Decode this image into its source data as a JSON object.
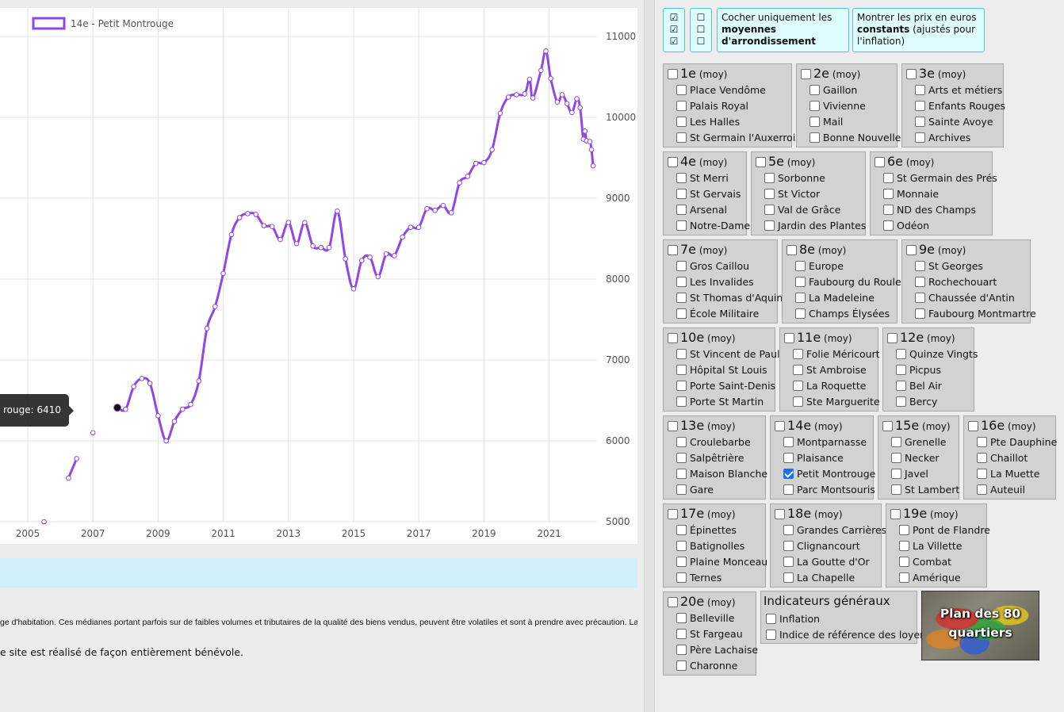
{
  "chart_data": {
    "type": "line",
    "title": "",
    "xlabel": "",
    "ylabel": "",
    "ylim": [
      5000,
      11000
    ],
    "xlim": [
      2004.7,
      2022.3
    ],
    "x_ticks": [
      "2005",
      "2007",
      "2009",
      "2011",
      "2013",
      "2015",
      "2017",
      "2019",
      "2021"
    ],
    "y_ticks": [
      "5000",
      "6000",
      "7000",
      "8000",
      "9000",
      "10000",
      "11000"
    ],
    "grid": true,
    "legend": "top-left",
    "series": [
      {
        "name": "14e - Petit Montrouge",
        "color": "#9146e8",
        "segments": [
          [
            [
              2005.5,
              5000
            ]
          ],
          [
            [
              2006.25,
              5540
            ],
            [
              2006.5,
              5780
            ]
          ],
          [
            [
              2007.0,
              6100
            ]
          ],
          [
            [
              2007.75,
              6410
            ],
            [
              2008.0,
              6390
            ],
            [
              2008.25,
              6670
            ],
            [
              2008.5,
              6770
            ],
            [
              2008.75,
              6710
            ],
            [
              2009.0,
              6310
            ],
            [
              2009.25,
              6000
            ],
            [
              2009.5,
              6240
            ],
            [
              2009.75,
              6390
            ],
            [
              2010.0,
              6450
            ],
            [
              2010.25,
              6740
            ],
            [
              2010.5,
              7390
            ],
            [
              2010.75,
              7660
            ],
            [
              2011.0,
              8070
            ],
            [
              2011.25,
              8550
            ],
            [
              2011.5,
              8760
            ],
            [
              2011.75,
              8810
            ],
            [
              2012.0,
              8800
            ],
            [
              2012.25,
              8660
            ],
            [
              2012.5,
              8650
            ],
            [
              2012.75,
              8490
            ],
            [
              2013.0,
              8700
            ],
            [
              2013.25,
              8440
            ],
            [
              2013.5,
              8700
            ],
            [
              2013.75,
              8410
            ],
            [
              2014.0,
              8390
            ],
            [
              2014.25,
              8390
            ],
            [
              2014.5,
              8840
            ],
            [
              2014.75,
              8250
            ],
            [
              2015.0,
              7880
            ],
            [
              2015.25,
              8230
            ],
            [
              2015.5,
              8270
            ],
            [
              2015.75,
              8030
            ],
            [
              2016.0,
              8310
            ],
            [
              2016.25,
              8290
            ],
            [
              2016.5,
              8520
            ],
            [
              2016.75,
              8640
            ],
            [
              2017.0,
              8640
            ],
            [
              2017.25,
              8870
            ],
            [
              2017.5,
              8850
            ],
            [
              2017.75,
              8910
            ],
            [
              2018.0,
              8820
            ],
            [
              2018.25,
              9190
            ],
            [
              2018.5,
              9270
            ],
            [
              2018.75,
              9430
            ],
            [
              2019.0,
              9440
            ],
            [
              2019.25,
              9600
            ],
            [
              2019.5,
              10050
            ],
            [
              2019.75,
              10250
            ],
            [
              2020.0,
              10280
            ],
            [
              2020.25,
              10290
            ],
            [
              2020.4,
              10470
            ],
            [
              2020.5,
              10240
            ],
            [
              2020.75,
              10580
            ],
            [
              2020.9,
              10820
            ],
            [
              2021.05,
              10480
            ],
            [
              2021.25,
              10190
            ],
            [
              2021.4,
              10280
            ],
            [
              2021.55,
              10170
            ],
            [
              2021.7,
              10060
            ],
            [
              2021.85,
              10230
            ],
            [
              2021.95,
              10120
            ],
            [
              2022.05,
              9730
            ],
            [
              2022.1,
              9830
            ],
            [
              2022.15,
              9710
            ],
            [
              2022.25,
              9700
            ],
            [
              2022.3,
              9600
            ],
            [
              2022.35,
              9400
            ]
          ]
        ]
      }
    ],
    "tooltip": {
      "label": "rouge: 6410",
      "x": 2007.75,
      "y": 6410
    }
  },
  "disclaimer": "ge d'habitation. Ces médianes portant parfois sur de faibles volumes et tributaires de la qualité des biens vendus, peuvent être volatiles et sont à prendre avec précaution. La base",
  "credit": "e site est réalisé de façon entièrement bénévole.",
  "controls": {
    "check_col1": [
      "☑",
      "☑",
      "☑"
    ],
    "check_col2": [
      "☐",
      "☐",
      "☐"
    ],
    "averages_pre": "Cocher uniquement les ",
    "averages_bold": "moyennes d'arrondissement",
    "constant_pre": "Montrer les prix en euros ",
    "constant_bold": "constants",
    "constant_post": " (ajustés pour l'inflation)"
  },
  "moy_label": "(moy)",
  "arrondissements": [
    {
      "num": "1e",
      "checked": false,
      "quartiers": [
        {
          "label": "Place Vendôme",
          "checked": false
        },
        {
          "label": "Palais Royal",
          "checked": false
        },
        {
          "label": "Les Halles",
          "checked": false
        },
        {
          "label": "St Germain l'Auxerrois",
          "checked": false
        }
      ]
    },
    {
      "num": "2e",
      "checked": false,
      "quartiers": [
        {
          "label": "Gaillon",
          "checked": false
        },
        {
          "label": "Vivienne",
          "checked": false
        },
        {
          "label": "Mail",
          "checked": false
        },
        {
          "label": "Bonne Nouvelle",
          "checked": false
        }
      ]
    },
    {
      "num": "3e",
      "checked": false,
      "quartiers": [
        {
          "label": "Arts et métiers",
          "checked": false
        },
        {
          "label": "Enfants Rouges",
          "checked": false
        },
        {
          "label": "Sainte Avoye",
          "checked": false
        },
        {
          "label": "Archives",
          "checked": false
        }
      ]
    },
    {
      "num": "4e",
      "checked": false,
      "quartiers": [
        {
          "label": "St Merri",
          "checked": false
        },
        {
          "label": "St Gervais",
          "checked": false
        },
        {
          "label": "Arsenal",
          "checked": false
        },
        {
          "label": "Notre-Dame",
          "checked": false
        }
      ]
    },
    {
      "num": "5e",
      "checked": false,
      "quartiers": [
        {
          "label": "Sorbonne",
          "checked": false
        },
        {
          "label": "St Victor",
          "checked": false
        },
        {
          "label": "Val de Grâce",
          "checked": false
        },
        {
          "label": "Jardin des Plantes",
          "checked": false
        }
      ]
    },
    {
      "num": "6e",
      "checked": false,
      "quartiers": [
        {
          "label": "St Germain des Prés",
          "checked": false
        },
        {
          "label": "Monnaie",
          "checked": false
        },
        {
          "label": "ND des Champs",
          "checked": false
        },
        {
          "label": "Odéon",
          "checked": false
        }
      ]
    },
    {
      "num": "7e",
      "checked": false,
      "quartiers": [
        {
          "label": "Gros Caillou",
          "checked": false
        },
        {
          "label": "Les Invalides",
          "checked": false
        },
        {
          "label": "St Thomas d'Aquin",
          "checked": false
        },
        {
          "label": "École Militaire",
          "checked": false
        }
      ]
    },
    {
      "num": "8e",
      "checked": false,
      "quartiers": [
        {
          "label": "Europe",
          "checked": false
        },
        {
          "label": "Faubourg du Roule",
          "checked": false
        },
        {
          "label": "La Madeleine",
          "checked": false
        },
        {
          "label": "Champs Élysées",
          "checked": false
        }
      ]
    },
    {
      "num": "9e",
      "checked": false,
      "quartiers": [
        {
          "label": "St Georges",
          "checked": false
        },
        {
          "label": "Rochechouart",
          "checked": false
        },
        {
          "label": "Chaussée d'Antin",
          "checked": false
        },
        {
          "label": "Faubourg Montmartre",
          "checked": false
        }
      ]
    },
    {
      "num": "10e",
      "checked": false,
      "quartiers": [
        {
          "label": "St Vincent de Paul",
          "checked": false
        },
        {
          "label": "Hôpital St Louis",
          "checked": false
        },
        {
          "label": "Porte Saint-Denis",
          "checked": false
        },
        {
          "label": "Porte St Martin",
          "checked": false
        }
      ]
    },
    {
      "num": "11e",
      "checked": false,
      "quartiers": [
        {
          "label": "Folie Méricourt",
          "checked": false
        },
        {
          "label": "St Ambroise",
          "checked": false
        },
        {
          "label": "La Roquette",
          "checked": false
        },
        {
          "label": "Ste Marguerite",
          "checked": false
        }
      ]
    },
    {
      "num": "12e",
      "checked": false,
      "quartiers": [
        {
          "label": "Quinze Vingts",
          "checked": false
        },
        {
          "label": "Picpus",
          "checked": false
        },
        {
          "label": "Bel Air",
          "checked": false
        },
        {
          "label": "Bercy",
          "checked": false
        }
      ]
    },
    {
      "num": "13e",
      "checked": false,
      "quartiers": [
        {
          "label": "Croulebarbe",
          "checked": false
        },
        {
          "label": "Salpêtrière",
          "checked": false
        },
        {
          "label": "Maison Blanche",
          "checked": false
        },
        {
          "label": "Gare",
          "checked": false
        }
      ]
    },
    {
      "num": "14e",
      "checked": false,
      "quartiers": [
        {
          "label": "Montparnasse",
          "checked": false
        },
        {
          "label": "Plaisance",
          "checked": false
        },
        {
          "label": "Petit Montrouge",
          "checked": true
        },
        {
          "label": "Parc Montsouris",
          "checked": false
        }
      ]
    },
    {
      "num": "15e",
      "checked": false,
      "quartiers": [
        {
          "label": "Grenelle",
          "checked": false
        },
        {
          "label": "Necker",
          "checked": false
        },
        {
          "label": "Javel",
          "checked": false
        },
        {
          "label": "St Lambert",
          "checked": false
        }
      ]
    },
    {
      "num": "16e",
      "checked": false,
      "quartiers": [
        {
          "label": "Pte Dauphine",
          "checked": false
        },
        {
          "label": "Chaillot",
          "checked": false
        },
        {
          "label": "La Muette",
          "checked": false
        },
        {
          "label": "Auteuil",
          "checked": false
        }
      ]
    },
    {
      "num": "17e",
      "checked": false,
      "quartiers": [
        {
          "label": "Épinettes",
          "checked": false
        },
        {
          "label": "Batignolles",
          "checked": false
        },
        {
          "label": "Plaine Monceau",
          "checked": false
        },
        {
          "label": "Ternes",
          "checked": false
        }
      ]
    },
    {
      "num": "18e",
      "checked": false,
      "quartiers": [
        {
          "label": "Grandes Carrières",
          "checked": false
        },
        {
          "label": "Clignancourt",
          "checked": false
        },
        {
          "label": "La Goutte d'Or",
          "checked": false
        },
        {
          "label": "La Chapelle",
          "checked": false
        }
      ]
    },
    {
      "num": "19e",
      "checked": false,
      "quartiers": [
        {
          "label": "Pont de Flandre",
          "checked": false
        },
        {
          "label": "La Villette",
          "checked": false
        },
        {
          "label": "Combat",
          "checked": false
        },
        {
          "label": "Amérique",
          "checked": false
        }
      ]
    },
    {
      "num": "20e",
      "checked": false,
      "quartiers": [
        {
          "label": "Belleville",
          "checked": false
        },
        {
          "label": "St Fargeau",
          "checked": false
        },
        {
          "label": "Père Lachaise",
          "checked": false
        },
        {
          "label": "Charonne",
          "checked": false
        }
      ]
    }
  ],
  "indicateurs": {
    "title": "Indicateurs généraux",
    "items": [
      {
        "label": "Inflation",
        "checked": false
      },
      {
        "label": "Indice de référence des loyers",
        "checked": false
      }
    ]
  },
  "plan": {
    "label": "Plan des 80 quartiers"
  }
}
